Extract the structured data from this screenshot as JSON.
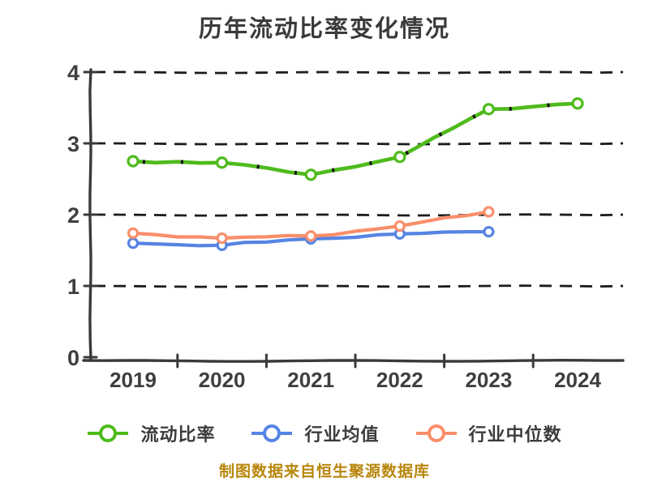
{
  "chart_data": {
    "type": "line",
    "title": "历年流动比率变化情况",
    "categories": [
      "2019",
      "2020",
      "2021",
      "2022",
      "2023",
      "2024"
    ],
    "series": [
      {
        "key": "current-ratio",
        "name": "流动比率",
        "color": "#4fbb1d",
        "values": [
          2.75,
          2.73,
          2.56,
          2.81,
          3.48,
          3.56
        ]
      },
      {
        "key": "industry-average",
        "name": "行业均值",
        "color": "#5584e4",
        "values": [
          1.6,
          1.57,
          1.66,
          1.73,
          1.76,
          null
        ]
      },
      {
        "key": "industry-median",
        "name": "行业中位数",
        "color": "#f98e6a",
        "values": [
          1.74,
          1.67,
          1.7,
          1.84,
          2.04,
          null
        ]
      }
    ],
    "xlabel": "",
    "ylabel": "",
    "ylim": [
      0,
      4
    ],
    "yticks": [
      0,
      1,
      2,
      3,
      4
    ],
    "grid": "horizontal-dashed",
    "legend_position": "bottom",
    "marker": "circle-white-filled",
    "note": "制图数据来自恒生聚源数据库",
    "colors": {
      "note_text": "#b8860b",
      "axis_text": "#3f3f3f",
      "title_text": "#3a3a3a",
      "gridline": "#1c1c1c",
      "spine": "#3a3a3a",
      "sketch_marks": "#151515",
      "marker_fill": "#ffffff",
      "background": "#ffffff"
    }
  }
}
